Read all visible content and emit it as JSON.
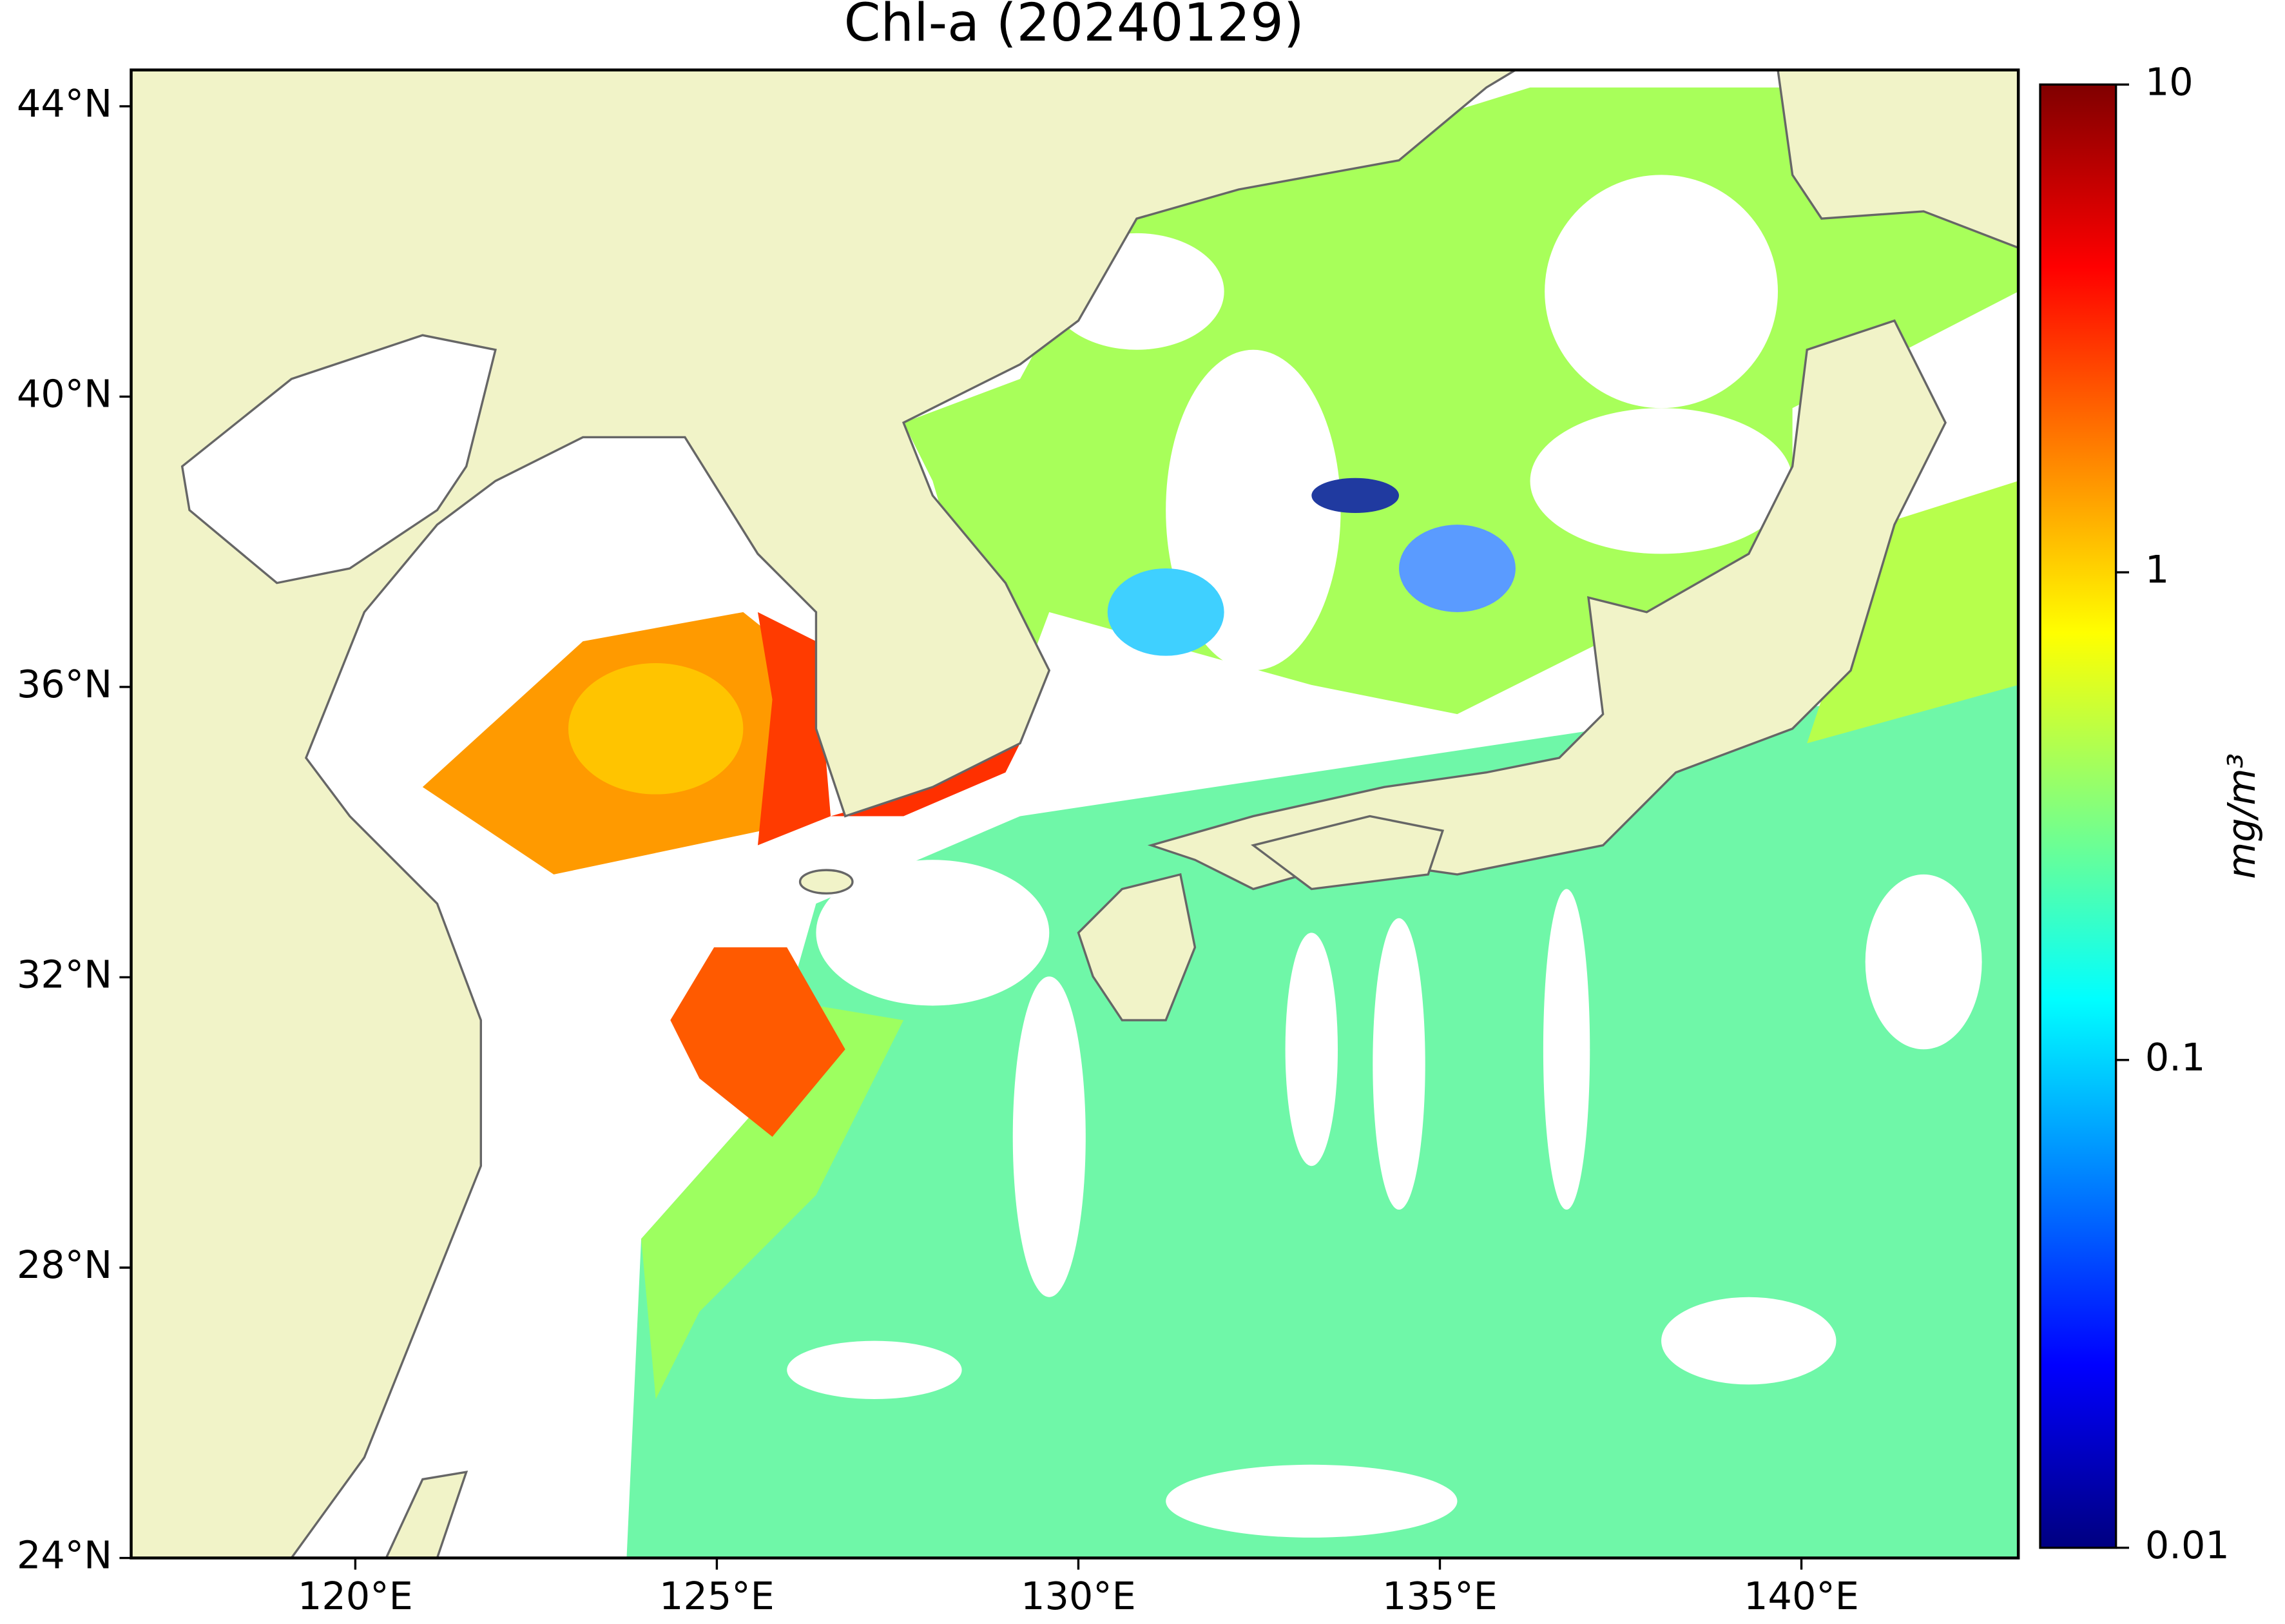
{
  "chart_data": {
    "type": "map",
    "title": "Chl-a (20240129)",
    "xlim": [
      116.9,
      143
    ],
    "xticks": [
      {
        "value": 120,
        "label": "120°E"
      },
      {
        "value": 125,
        "label": "125°E"
      },
      {
        "value": 130,
        "label": "130°E"
      },
      {
        "value": 135,
        "label": "135°E"
      },
      {
        "value": 140,
        "label": "140°E"
      }
    ],
    "ylim": [
      24,
      44.5
    ],
    "yticks": [
      {
        "value": 24,
        "label": "24°N"
      },
      {
        "value": 28,
        "label": "28°N"
      },
      {
        "value": 32,
        "label": "32°N"
      },
      {
        "value": 36,
        "label": "36°N"
      },
      {
        "value": 40,
        "label": "40°N"
      },
      {
        "value": 44,
        "label": "44°N"
      }
    ],
    "colorbar": {
      "label": "mg/m³",
      "colormap": "jet",
      "scale": "log",
      "lim": [
        0.01,
        10
      ],
      "ticks": [
        0.01,
        0.1,
        1,
        10
      ]
    }
  }
}
